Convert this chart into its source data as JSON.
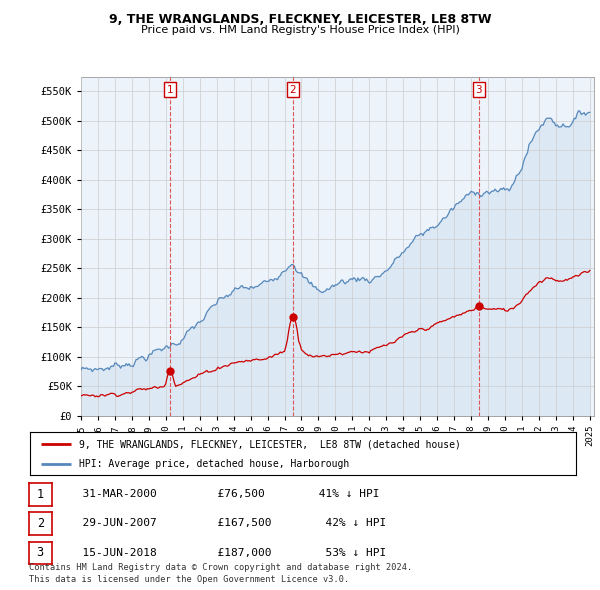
{
  "title1": "9, THE WRANGLANDS, FLECKNEY, LEICESTER, LE8 8TW",
  "title2": "Price paid vs. HM Land Registry's House Price Index (HPI)",
  "ylabel_ticks": [
    "£0",
    "£50K",
    "£100K",
    "£150K",
    "£200K",
    "£250K",
    "£300K",
    "£350K",
    "£400K",
    "£450K",
    "£500K",
    "£550K"
  ],
  "ytick_vals": [
    0,
    50000,
    100000,
    150000,
    200000,
    250000,
    300000,
    350000,
    400000,
    450000,
    500000,
    550000
  ],
  "ylim": [
    0,
    575000
  ],
  "legend_line1": "9, THE WRANGLANDS, FLECKNEY, LEICESTER,  LE8 8TW (detached house)",
  "legend_line2": "HPI: Average price, detached house, Harborough",
  "red_line_color": "#cc0000",
  "blue_line_color": "#5588bb",
  "blue_fill_color": "#dde8f5",
  "table_rows": [
    {
      "num": "1",
      "date": "31-MAR-2000",
      "price": "£76,500",
      "pct": "41% ↓ HPI"
    },
    {
      "num": "2",
      "date": "29-JUN-2007",
      "price": "£167,500",
      "pct": "42% ↓ HPI"
    },
    {
      "num": "3",
      "date": "15-JUN-2018",
      "price": "£187,000",
      "pct": "53% ↓ HPI"
    }
  ],
  "footnote1": "Contains HM Land Registry data © Crown copyright and database right 2024.",
  "footnote2": "This data is licensed under the Open Government Licence v3.0.",
  "purchase_dates": [
    2000.25,
    2007.5,
    2018.46
  ],
  "purchase_prices": [
    76500,
    167500,
    187000
  ],
  "vline_nums": [
    "1",
    "2",
    "3"
  ],
  "background_color": "#ffffff",
  "plot_bg_color": "#edf3fb",
  "grid_color": "#cccccc"
}
